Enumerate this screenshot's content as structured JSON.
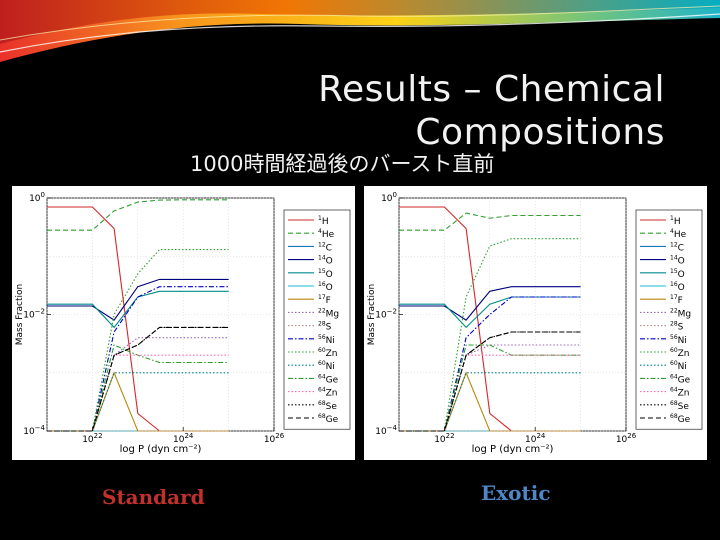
{
  "slide": {
    "title_line1": "Results – Chemical",
    "title_line2": "Compositions",
    "subtitle": "1000時間経過後のバースト直前"
  },
  "colors": {
    "background": "#000000",
    "banner_red": "#e8312a",
    "banner_orange": "#f7941d",
    "banner_teal": "#1fb5c8",
    "caption_standard": "#c0312b",
    "caption_exotic": "#4f86c6"
  },
  "chart_data": [
    {
      "type": "line",
      "caption": "Standard",
      "xlabel": "log P (dyn cm⁻²)",
      "ylabel": "Mass Fraction",
      "xscale": "log",
      "yscale": "log",
      "xlim": [
        1e+21,
        1e+26
      ],
      "ylim": [
        0.0001,
        1
      ],
      "x_ticks": [
        {
          "m": "10",
          "e": "22",
          "v": 1e+22
        },
        {
          "m": "10",
          "e": "24",
          "v": 1e+24
        },
        {
          "m": "10",
          "e": "26",
          "v": 1e+26
        }
      ],
      "y_ticks": [
        {
          "m": "10",
          "e": "0",
          "v": 1
        },
        {
          "m": "10",
          "e": "−2",
          "v": 0.01
        },
        {
          "m": "10",
          "e": "−4",
          "v": 0.0001
        }
      ],
      "grid": true,
      "legend_position": "right",
      "x": [
        1e+21,
        1e+22,
        1e+22,
        3e+22,
        1e+23,
        3e+23,
        1e+24,
        3e+24,
        1e+25
      ],
      "series": [
        {
          "name": "H",
          "iso": "1",
          "color": "#d62728",
          "dash": "solid",
          "values": [
            0.7,
            0.7,
            0.7,
            0.3,
            0.0002,
            0.0001,
            0.0001,
            0.0001,
            0.0001
          ]
        },
        {
          "name": "He",
          "iso": "4",
          "color": "#2ca02c",
          "dash": "dashed",
          "values": [
            0.28,
            0.28,
            0.28,
            0.6,
            0.85,
            0.92,
            0.93,
            0.93,
            0.93
          ]
        },
        {
          "name": "C",
          "iso": "12",
          "color": "#1f77b4",
          "dash": "solid",
          "values": [
            0.0001,
            0.0001,
            0.0001,
            0.0001,
            0.0001,
            0.0001,
            0.0001,
            0.0001,
            0.0001
          ]
        },
        {
          "name": "O",
          "iso": "14",
          "color": "#000080",
          "dash": "solid",
          "values": [
            0.014,
            0.014,
            0.014,
            0.008,
            0.03,
            0.04,
            0.04,
            0.04,
            0.04
          ]
        },
        {
          "name": "O",
          "iso": "15",
          "color": "#008b8b",
          "dash": "solid",
          "values": [
            0.015,
            0.015,
            0.015,
            0.006,
            0.02,
            0.025,
            0.025,
            0.025,
            0.025
          ]
        },
        {
          "name": "O",
          "iso": "16",
          "color": "#17becf",
          "dash": "solid",
          "values": [
            0.0001,
            0.0001,
            0.0001,
            0.0001,
            0.0001,
            0.0001,
            0.0001,
            0.0001,
            0.0001
          ]
        },
        {
          "name": "F",
          "iso": "17",
          "color": "#b8860b",
          "dash": "solid",
          "values": [
            0.0001,
            0.0001,
            0.0001,
            0.001,
            0.0001,
            0.0001,
            0.0001,
            0.0001,
            0.0001
          ]
        },
        {
          "name": "Mg",
          "iso": "22",
          "color": "#9467bd",
          "dash": "dotted",
          "values": [
            0.0001,
            0.0001,
            0.0001,
            0.002,
            0.004,
            0.004,
            0.004,
            0.004,
            0.004
          ]
        },
        {
          "name": "S",
          "iso": "28",
          "color": "#bc8f8f",
          "dash": "dotted",
          "values": [
            0.0001,
            0.0001,
            0.0001,
            0.0001,
            0.0001,
            0.0001,
            0.0001,
            0.0001,
            0.0001
          ]
        },
        {
          "name": "Ni",
          "iso": "56",
          "color": "#0000cd",
          "dash": "dashdot",
          "values": [
            0.0001,
            0.0001,
            0.0001,
            0.005,
            0.02,
            0.03,
            0.03,
            0.03,
            0.03
          ]
        },
        {
          "name": "Zn",
          "iso": "60",
          "color": "#2ca02c",
          "dash": "dotted",
          "values": [
            0.0001,
            0.0001,
            0.0001,
            0.01,
            0.05,
            0.13,
            0.13,
            0.13,
            0.13
          ]
        },
        {
          "name": "Ni",
          "iso": "60",
          "color": "#008080",
          "dash": "dotted",
          "values": [
            0.0001,
            0.0001,
            0.0001,
            0.001,
            0.001,
            0.001,
            0.001,
            0.001,
            0.001
          ]
        },
        {
          "name": "Ge",
          "iso": "64",
          "color": "#2ca02c",
          "dash": "dashdot",
          "values": [
            0.0001,
            0.0001,
            0.0001,
            0.003,
            0.002,
            0.0015,
            0.0015,
            0.0015,
            0.0015
          ]
        },
        {
          "name": "Zn",
          "iso": "64",
          "color": "#ff69b4",
          "dash": "dotted",
          "values": [
            0.0001,
            0.0001,
            0.0001,
            0.002,
            0.002,
            0.002,
            0.002,
            0.002,
            0.002
          ]
        },
        {
          "name": "Se",
          "iso": "68",
          "color": "#000000",
          "dash": "dotted",
          "values": [
            0.0001,
            0.0001,
            0.0001,
            0.002,
            0.003,
            0.006,
            0.006,
            0.006,
            0.006
          ]
        },
        {
          "name": "Ge",
          "iso": "68",
          "color": "#000000",
          "dash": "dashed",
          "values": [
            0.0001,
            0.0001,
            0.0001,
            0.002,
            0.003,
            0.006,
            0.006,
            0.006,
            0.006
          ]
        }
      ]
    },
    {
      "type": "line",
      "caption": "Exotic",
      "xlabel": "log P (dyn cm⁻²)",
      "ylabel": "Mass Fraction",
      "xscale": "log",
      "yscale": "log",
      "xlim": [
        1e+21,
        1e+26
      ],
      "ylim": [
        0.0001,
        1
      ],
      "x_ticks": [
        {
          "m": "10",
          "e": "22",
          "v": 1e+22
        },
        {
          "m": "10",
          "e": "24",
          "v": 1e+24
        },
        {
          "m": "10",
          "e": "26",
          "v": 1e+26
        }
      ],
      "y_ticks": [
        {
          "m": "10",
          "e": "0",
          "v": 1
        },
        {
          "m": "10",
          "e": "−2",
          "v": 0.01
        },
        {
          "m": "10",
          "e": "−4",
          "v": 0.0001
        }
      ],
      "grid": true,
      "legend_position": "right",
      "x": [
        1e+21,
        1e+22,
        1e+22,
        3e+22,
        1e+23,
        3e+23,
        1e+24,
        3e+24,
        1e+25
      ],
      "series": [
        {
          "name": "H",
          "iso": "1",
          "color": "#d62728",
          "dash": "solid",
          "values": [
            0.7,
            0.7,
            0.7,
            0.3,
            0.0002,
            0.0001,
            0.0001,
            0.0001,
            0.0001
          ]
        },
        {
          "name": "He",
          "iso": "4",
          "color": "#2ca02c",
          "dash": "dashed",
          "values": [
            0.28,
            0.28,
            0.28,
            0.55,
            0.45,
            0.5,
            0.5,
            0.5,
            0.5
          ]
        },
        {
          "name": "C",
          "iso": "12",
          "color": "#1f77b4",
          "dash": "solid",
          "values": [
            0.0001,
            0.0001,
            0.0001,
            0.0001,
            0.0001,
            0.0001,
            0.0001,
            0.0001,
            0.0001
          ]
        },
        {
          "name": "O",
          "iso": "14",
          "color": "#000080",
          "dash": "solid",
          "values": [
            0.014,
            0.014,
            0.014,
            0.008,
            0.025,
            0.03,
            0.03,
            0.03,
            0.03
          ]
        },
        {
          "name": "O",
          "iso": "15",
          "color": "#008b8b",
          "dash": "solid",
          "values": [
            0.015,
            0.015,
            0.015,
            0.006,
            0.015,
            0.02,
            0.02,
            0.02,
            0.02
          ]
        },
        {
          "name": "O",
          "iso": "16",
          "color": "#17becf",
          "dash": "solid",
          "values": [
            0.0001,
            0.0001,
            0.0001,
            0.0001,
            0.0001,
            0.0001,
            0.0001,
            0.0001,
            0.0001
          ]
        },
        {
          "name": "F",
          "iso": "17",
          "color": "#b8860b",
          "dash": "solid",
          "values": [
            0.0001,
            0.0001,
            0.0001,
            0.001,
            0.0001,
            0.0001,
            0.0001,
            0.0001,
            0.0001
          ]
        },
        {
          "name": "Mg",
          "iso": "22",
          "color": "#9467bd",
          "dash": "dotted",
          "values": [
            0.0001,
            0.0001,
            0.0001,
            0.002,
            0.003,
            0.003,
            0.003,
            0.003,
            0.003
          ]
        },
        {
          "name": "S",
          "iso": "28",
          "color": "#bc8f8f",
          "dash": "dotted",
          "values": [
            0.0001,
            0.0001,
            0.0001,
            0.0001,
            0.0001,
            0.0001,
            0.0001,
            0.0001,
            0.0001
          ]
        },
        {
          "name": "Ni",
          "iso": "56",
          "color": "#0000cd",
          "dash": "dashdot",
          "values": [
            0.0001,
            0.0001,
            0.0001,
            0.004,
            0.01,
            0.02,
            0.02,
            0.02,
            0.02
          ]
        },
        {
          "name": "Zn",
          "iso": "60",
          "color": "#2ca02c",
          "dash": "dotted",
          "values": [
            0.0001,
            0.0001,
            0.0001,
            0.02,
            0.15,
            0.2,
            0.2,
            0.2,
            0.2
          ]
        },
        {
          "name": "Ni",
          "iso": "60",
          "color": "#008080",
          "dash": "dotted",
          "values": [
            0.0001,
            0.0001,
            0.0001,
            0.001,
            0.001,
            0.001,
            0.001,
            0.001,
            0.001
          ]
        },
        {
          "name": "Ge",
          "iso": "64",
          "color": "#2ca02c",
          "dash": "dashdot",
          "values": [
            0.0001,
            0.0001,
            0.0001,
            0.003,
            0.003,
            0.002,
            0.002,
            0.002,
            0.002
          ]
        },
        {
          "name": "Zn",
          "iso": "64",
          "color": "#ff69b4",
          "dash": "dotted",
          "values": [
            0.0001,
            0.0001,
            0.0001,
            0.002,
            0.002,
            0.002,
            0.002,
            0.002,
            0.002
          ]
        },
        {
          "name": "Se",
          "iso": "68",
          "color": "#000000",
          "dash": "dotted",
          "values": [
            0.0001,
            0.0001,
            0.0001,
            0.002,
            0.004,
            0.005,
            0.005,
            0.005,
            0.005
          ]
        },
        {
          "name": "Ge",
          "iso": "68",
          "color": "#000000",
          "dash": "dashed",
          "values": [
            0.0001,
            0.0001,
            0.0001,
            0.002,
            0.004,
            0.005,
            0.005,
            0.005,
            0.005
          ]
        }
      ]
    }
  ]
}
